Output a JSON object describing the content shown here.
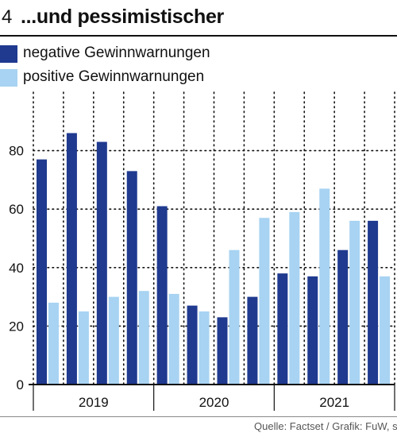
{
  "header": {
    "number": "4",
    "title": "...und pessimistischer"
  },
  "legend": {
    "negative": "negative Gewinnwarnungen",
    "positive": "positive Gewinnwarnungen"
  },
  "colors": {
    "negative": "#1f3a8f",
    "positive": "#a8d3f2",
    "axis": "#111111",
    "grid": "#111111"
  },
  "source": "Quelle: Factset / Grafik: FuW, sp",
  "chart_data": {
    "type": "bar",
    "title": "...und pessimistischer",
    "xlabel": "",
    "ylabel": "",
    "ylim": [
      0,
      100
    ],
    "yticks": [
      0,
      20,
      40,
      60,
      80
    ],
    "grid": true,
    "legend_position": "top-left",
    "year_labels": [
      {
        "label": "2019",
        "start": 0,
        "end": 4
      },
      {
        "label": "2020",
        "start": 4,
        "end": 8
      },
      {
        "label": "2021",
        "start": 8,
        "end": 12
      }
    ],
    "categories": [
      "2019 Q1",
      "2019 Q2",
      "2019 Q3",
      "2019 Q4",
      "2020 Q1",
      "2020 Q2",
      "2020 Q3",
      "2020 Q4",
      "2021 Q1",
      "2021 Q2",
      "2021 Q3",
      "2021 Q4"
    ],
    "series": [
      {
        "name": "negative Gewinnwarnungen",
        "values": [
          77,
          86,
          83,
          73,
          61,
          27,
          23,
          30,
          38,
          37,
          46,
          56
        ]
      },
      {
        "name": "positive Gewinnwarnungen",
        "values": [
          28,
          25,
          30,
          32,
          31,
          25,
          46,
          57,
          59,
          67,
          56,
          37
        ]
      }
    ]
  }
}
